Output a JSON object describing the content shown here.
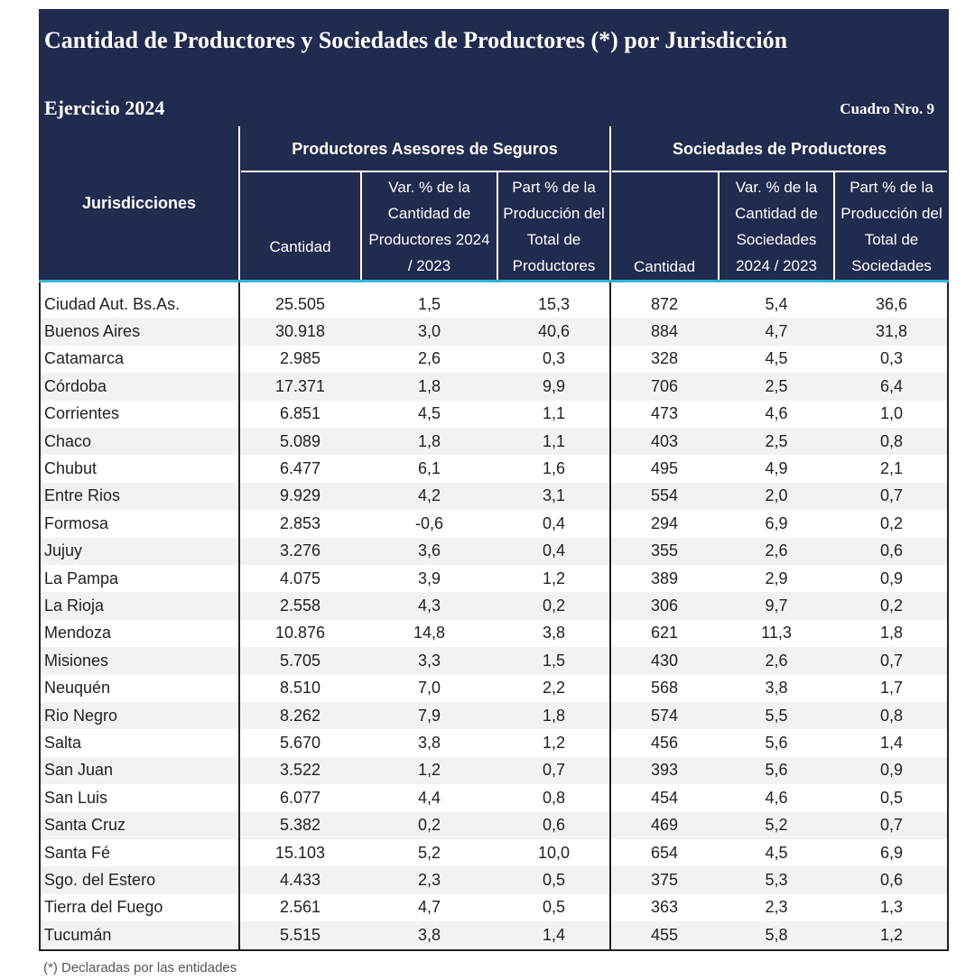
{
  "header": {
    "title": "Cantidad de Productores y Sociedades de Productores (*) por Jurisdicción",
    "subtitle": "Ejercicio 2024",
    "table_number": "Cuadro Nro. 9"
  },
  "table": {
    "row_header": "Jurisdicciones",
    "groups": [
      {
        "label": "Productores Asesores de Seguros",
        "columns": [
          "Cantidad",
          "Var. % de la Cantidad de Productores 2024 / 2023",
          "Part % de la Producción del Total de Productores"
        ]
      },
      {
        "label": "Sociedades de Productores",
        "columns": [
          "Cantidad",
          "Var. % de la Cantidad de Sociedades 2024 / 2023",
          "Part % de la Producción del Total de Sociedades"
        ]
      }
    ],
    "rows": [
      [
        "Ciudad Aut. Bs.As.",
        "25.505",
        "1,5",
        "15,3",
        "872",
        "5,4",
        "36,6"
      ],
      [
        "Buenos Aires",
        "30.918",
        "3,0",
        "40,6",
        "884",
        "4,7",
        "31,8"
      ],
      [
        "Catamarca",
        "2.985",
        "2,6",
        "0,3",
        "328",
        "4,5",
        "0,3"
      ],
      [
        "Córdoba",
        "17.371",
        "1,8",
        "9,9",
        "706",
        "2,5",
        "6,4"
      ],
      [
        "Corrientes",
        "6.851",
        "4,5",
        "1,1",
        "473",
        "4,6",
        "1,0"
      ],
      [
        "Chaco",
        "5.089",
        "1,8",
        "1,1",
        "403",
        "2,5",
        "0,8"
      ],
      [
        "Chubut",
        "6.477",
        "6,1",
        "1,6",
        "495",
        "4,9",
        "2,1"
      ],
      [
        "Entre Rios",
        "9.929",
        "4,2",
        "3,1",
        "554",
        "2,0",
        "0,7"
      ],
      [
        "Formosa",
        "2.853",
        "-0,6",
        "0,4",
        "294",
        "6,9",
        "0,2"
      ],
      [
        "Jujuy",
        "3.276",
        "3,6",
        "0,4",
        "355",
        "2,6",
        "0,6"
      ],
      [
        "La Pampa",
        "4.075",
        "3,9",
        "1,2",
        "389",
        "2,9",
        "0,9"
      ],
      [
        "La Rioja",
        "2.558",
        "4,3",
        "0,2",
        "306",
        "9,7",
        "0,2"
      ],
      [
        "Mendoza",
        "10.876",
        "14,8",
        "3,8",
        "621",
        "11,3",
        "1,8"
      ],
      [
        "Misiones",
        "5.705",
        "3,3",
        "1,5",
        "430",
        "2,6",
        "0,7"
      ],
      [
        "Neuquén",
        "8.510",
        "7,0",
        "2,2",
        "568",
        "3,8",
        "1,7"
      ],
      [
        "Rio Negro",
        "8.262",
        "7,9",
        "1,8",
        "574",
        "5,5",
        "0,8"
      ],
      [
        "Salta",
        "5.670",
        "3,8",
        "1,2",
        "456",
        "5,6",
        "1,4"
      ],
      [
        "San Juan",
        "3.522",
        "1,2",
        "0,7",
        "393",
        "5,6",
        "0,9"
      ],
      [
        "San Luis",
        "6.077",
        "4,4",
        "0,8",
        "454",
        "4,6",
        "0,5"
      ],
      [
        "Santa Cruz",
        "5.382",
        "0,2",
        "0,6",
        "469",
        "5,2",
        "0,7"
      ],
      [
        "Santa Fé",
        "15.103",
        "5,2",
        "10,0",
        "654",
        "4,5",
        "6,9"
      ],
      [
        "Sgo. del Estero",
        "4.433",
        "2,3",
        "0,5",
        "375",
        "5,3",
        "0,6"
      ],
      [
        "Tierra del Fuego",
        "2.561",
        "4,7",
        "0,5",
        "363",
        "2,3",
        "1,3"
      ],
      [
        "Tucumán",
        "5.515",
        "3,8",
        "1,4",
        "455",
        "5,8",
        "1,2"
      ]
    ]
  },
  "footnote": "(*) Declaradas por las entidades"
}
